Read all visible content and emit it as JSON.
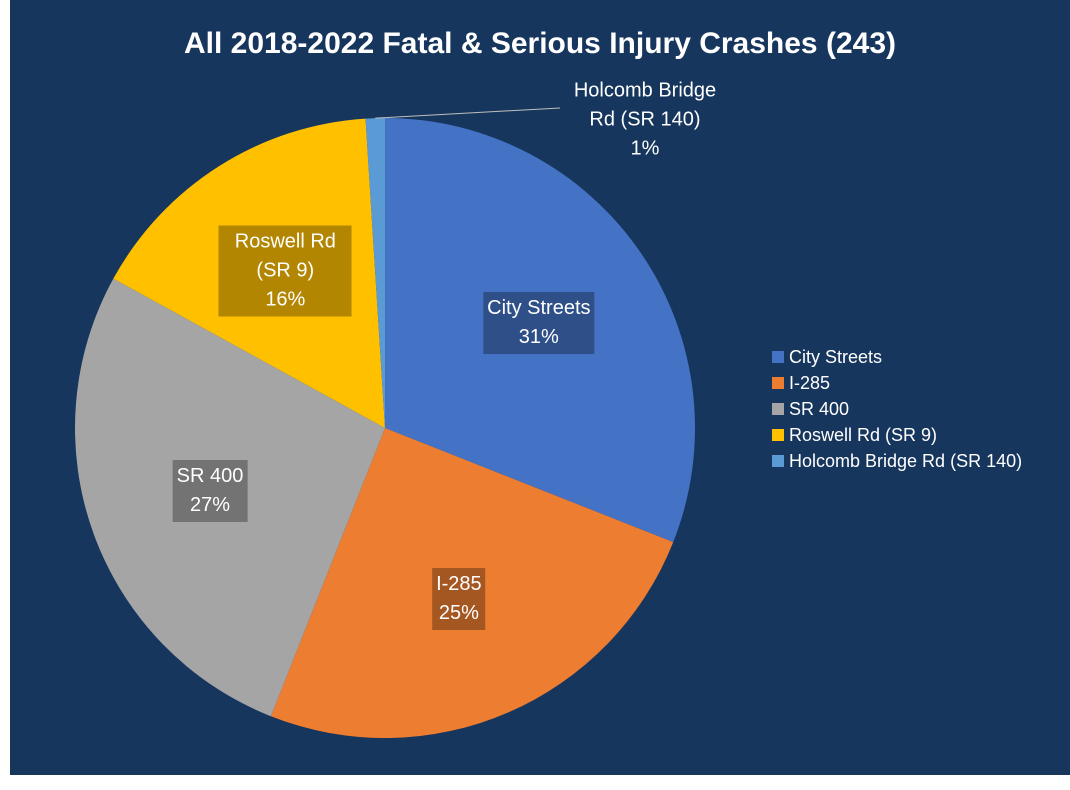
{
  "chart_data": {
    "type": "pie",
    "title": "All 2018-2022 Fatal & Serious Injury Crashes (243)",
    "categories": [
      "City Streets",
      "I-285",
      "SR 400",
      "Roswell Rd (SR 9)",
      "Holcomb Bridge Rd (SR 140)"
    ],
    "values": [
      31,
      25,
      27,
      16,
      1
    ],
    "value_labels": [
      "31%",
      "25%",
      "27%",
      "16%",
      "1%"
    ],
    "colors": [
      "#4472c4",
      "#ed7d31",
      "#a5a5a5",
      "#ffc000",
      "#5b9bd5"
    ],
    "legend": "right"
  }
}
